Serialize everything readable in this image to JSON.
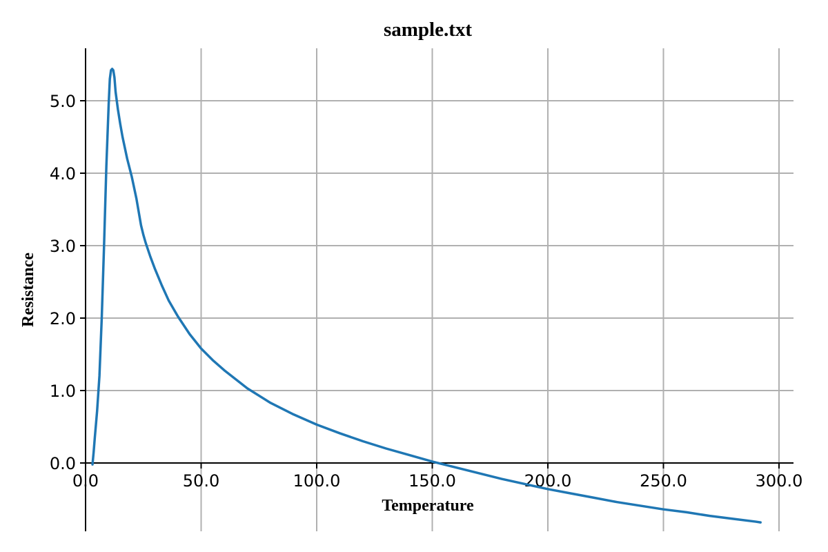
{
  "chart_data": {
    "type": "line",
    "title": "sample.txt",
    "xlabel": "Temperature",
    "ylabel": "Resistance",
    "xlim": [
      0.0,
      300.0
    ],
    "ylim": [
      -0.95,
      5.7
    ],
    "xticks": [
      0,
      50,
      100,
      150,
      200,
      250,
      300
    ],
    "xtick_labels": [
      "0.0",
      "50.0",
      "100.0",
      "150.0",
      "200.0",
      "250.0",
      "300.0"
    ],
    "yticks": [
      0,
      1,
      2,
      3,
      4,
      5
    ],
    "ytick_labels": [
      "0.0",
      "1.0",
      "2.0",
      "3.0",
      "4.0",
      "5.0"
    ],
    "grid": true,
    "colors": {
      "series": "#1f77b4",
      "grid": "#b0b0b0",
      "axis": "#000000"
    },
    "series": [
      {
        "x": [
          3,
          3.5,
          4,
          5,
          6,
          7,
          8,
          9,
          10,
          10.5,
          11,
          11.5,
          12,
          12.5,
          13,
          14,
          15,
          16,
          18,
          20,
          22,
          24,
          25,
          26,
          28,
          30,
          33,
          36,
          40,
          45,
          50,
          55,
          60,
          70,
          80,
          90,
          100,
          110,
          120,
          130,
          140,
          150,
          160,
          170,
          180,
          190,
          200,
          210,
          220,
          230,
          240,
          250,
          260,
          270,
          280,
          290,
          292
        ],
        "y": [
          -0.02,
          0.15,
          0.35,
          0.72,
          1.2,
          2.0,
          3.0,
          4.1,
          4.95,
          5.3,
          5.42,
          5.44,
          5.42,
          5.32,
          5.12,
          4.88,
          4.68,
          4.5,
          4.2,
          3.95,
          3.65,
          3.28,
          3.15,
          3.04,
          2.85,
          2.68,
          2.45,
          2.24,
          2.02,
          1.78,
          1.58,
          1.42,
          1.28,
          1.03,
          0.83,
          0.67,
          0.53,
          0.41,
          0.3,
          0.2,
          0.11,
          0.02,
          -0.06,
          -0.14,
          -0.22,
          -0.29,
          -0.36,
          -0.42,
          -0.48,
          -0.54,
          -0.59,
          -0.64,
          -0.68,
          -0.73,
          -0.77,
          -0.81,
          -0.82
        ]
      }
    ]
  }
}
